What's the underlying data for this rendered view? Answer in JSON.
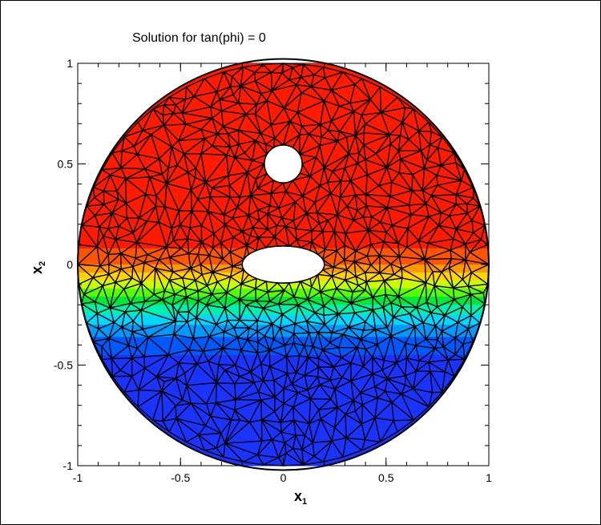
{
  "chart_data": {
    "type": "heatmap",
    "title": "Solution for tan(phi) = 0",
    "xlabel": "x",
    "xlabel_sub": "1",
    "ylabel": "x",
    "ylabel_sub": "2",
    "xlim": [
      -1,
      1
    ],
    "ylim": [
      -1,
      1
    ],
    "x_ticks": [
      -1,
      -0.5,
      0,
      0.5,
      1
    ],
    "x_tick_labels": [
      "-1",
      "-0.5",
      "0",
      "0.5",
      "1"
    ],
    "y_ticks": [
      -1,
      -0.5,
      0,
      0.5,
      1
    ],
    "y_tick_labels": [
      "-1",
      "-0.5",
      "0",
      "0.5",
      "1"
    ],
    "grid": false,
    "domain": {
      "outer_circle": {
        "cx": 0,
        "cy": 0,
        "r": 1
      },
      "holes": [
        {
          "shape": "circle",
          "cx": 0,
          "cy": 0.5,
          "r": 0.1
        },
        {
          "shape": "ellipse",
          "cx": 0,
          "cy": 0,
          "rx": 0.2,
          "ry": 0.08
        }
      ]
    },
    "color_bands": [
      {
        "y_from": 0.08,
        "y_to": 1.0,
        "color": "#ff1a00"
      },
      {
        "y_from": 0.0,
        "y_to": 0.08,
        "color": "#ff5500"
      },
      {
        "y_from": -0.04,
        "y_to": 0.0,
        "color": "#ff9900"
      },
      {
        "y_from": -0.08,
        "y_to": -0.04,
        "color": "#ffd500"
      },
      {
        "y_from": -0.12,
        "y_to": -0.08,
        "color": "#c8ff00"
      },
      {
        "y_from": -0.16,
        "y_to": -0.12,
        "color": "#55ff00"
      },
      {
        "y_from": -0.2,
        "y_to": -0.16,
        "color": "#00e83a"
      },
      {
        "y_from": -0.25,
        "y_to": -0.2,
        "color": "#00f0b0"
      },
      {
        "y_from": -0.3,
        "y_to": -0.25,
        "color": "#00d8ff"
      },
      {
        "y_from": -0.36,
        "y_to": -0.3,
        "color": "#0099ff"
      },
      {
        "y_from": -0.45,
        "y_to": -0.36,
        "color": "#0059ff"
      },
      {
        "y_from": -1.0,
        "y_to": -0.45,
        "color": "#1a33ff"
      }
    ],
    "mesh": "unstructured triangular mesh"
  }
}
